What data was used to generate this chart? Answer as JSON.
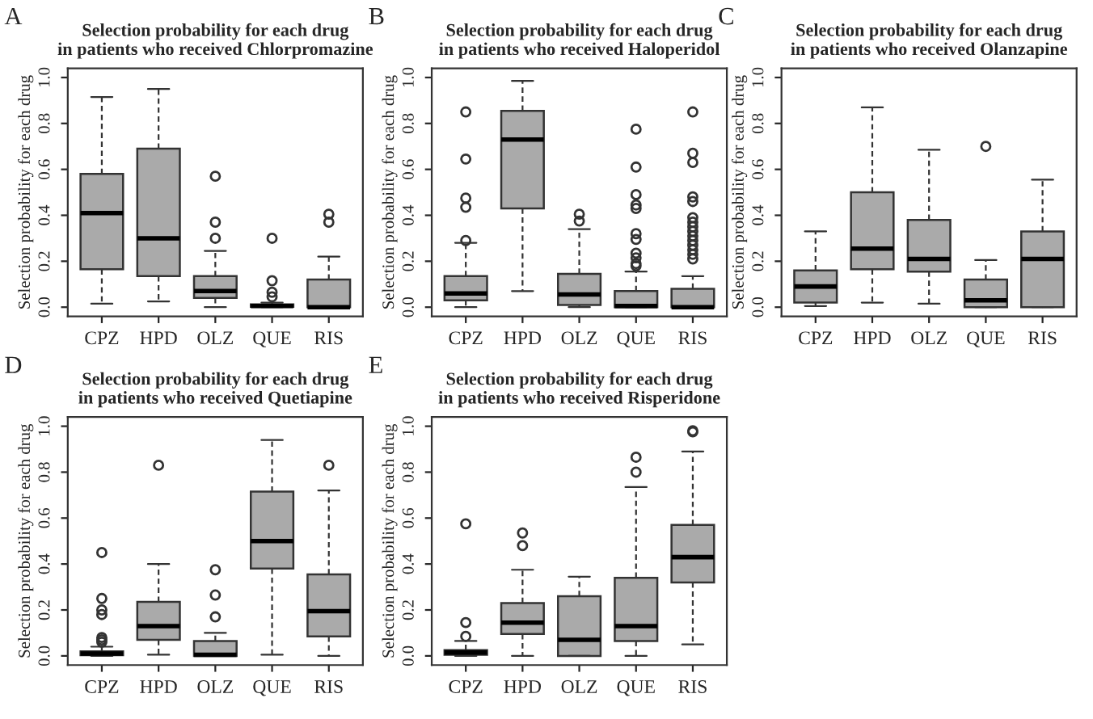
{
  "chart_data": [
    {
      "type": "box",
      "title": "Selection probability for each drug\nin patients who received Chlorpromazine",
      "ylabel": "Selection probability for each drug",
      "annotations": [
        "A"
      ],
      "color": "#aaaaaa",
      "categories": [
        "CPZ",
        "HPD",
        "OLZ",
        "QUE",
        "RIS"
      ],
      "ylim": [
        -0.04,
        1.04
      ],
      "yticks": [
        {
          "value": 0,
          "label": "0.0"
        },
        {
          "value": 0.2,
          "label": "0.2"
        },
        {
          "value": 0.4,
          "label": "0.4"
        },
        {
          "value": 0.6,
          "label": "0.6"
        },
        {
          "value": 0.8,
          "label": "0.8"
        },
        {
          "value": 1,
          "label": "1.0"
        }
      ],
      "boxes": [
        {
          "low": 0.015,
          "q1": 0.165,
          "median": 0.41,
          "q3": 0.58,
          "high": 0.915
        },
        {
          "low": 0.025,
          "q1": 0.135,
          "median": 0.3,
          "q3": 0.69,
          "high": 0.95
        },
        {
          "low": 0,
          "q1": 0.04,
          "median": 0.07,
          "q3": 0.135,
          "high": 0.245,
          "outliers": [
            0.57,
            0.37,
            0.3
          ]
        },
        {
          "low": 0,
          "q1": 0.002,
          "median": 0.005,
          "q3": 0.012,
          "high": 0.02,
          "outliers": [
            0.3,
            0.115,
            0.065,
            0.045
          ]
        },
        {
          "low": 0,
          "q1": 0,
          "median": 0,
          "q3": 0.12,
          "high": 0.22,
          "outliers": [
            0.405,
            0.37
          ]
        }
      ]
    },
    {
      "type": "box",
      "title": "Selection probability for each drug\nin patients who received Haloperidol",
      "ylabel": "Selection probability for each drug",
      "annotations": [
        "B"
      ],
      "color": "#aaaaaa",
      "categories": [
        "CPZ",
        "HPD",
        "OLZ",
        "QUE",
        "RIS"
      ],
      "ylim": [
        -0.04,
        1.04
      ],
      "yticks": [
        {
          "value": 0,
          "label": "0.0"
        },
        {
          "value": 0.2,
          "label": "0.2"
        },
        {
          "value": 0.4,
          "label": "0.4"
        },
        {
          "value": 0.6,
          "label": "0.6"
        },
        {
          "value": 0.8,
          "label": "0.8"
        },
        {
          "value": 1,
          "label": "1.0"
        }
      ],
      "boxes": [
        {
          "low": 0,
          "q1": 0.03,
          "median": 0.06,
          "q3": 0.135,
          "high": 0.28,
          "outliers": [
            0.85,
            0.645,
            0.475,
            0.435,
            0.29
          ]
        },
        {
          "low": 0.07,
          "q1": 0.43,
          "median": 0.73,
          "q3": 0.855,
          "high": 0.985
        },
        {
          "low": 0,
          "q1": 0.01,
          "median": 0.055,
          "q3": 0.145,
          "high": 0.34,
          "outliers": [
            0.405,
            0.375
          ]
        },
        {
          "low": 0,
          "q1": 0,
          "median": 0.005,
          "q3": 0.07,
          "high": 0.155,
          "outliers": [
            0.775,
            0.61,
            0.49,
            0.445,
            0.43,
            0.32,
            0.295,
            0.235,
            0.215,
            0.19,
            0.18
          ]
        },
        {
          "low": 0,
          "q1": 0,
          "median": 0,
          "q3": 0.08,
          "high": 0.135,
          "outliers": [
            0.85,
            0.67,
            0.63,
            0.48,
            0.46,
            0.39,
            0.37,
            0.35,
            0.33,
            0.31,
            0.29,
            0.27,
            0.25,
            0.23,
            0.21
          ]
        }
      ]
    },
    {
      "type": "box",
      "title": "Selection probability for each drug\nin patients who received Olanzapine",
      "ylabel": "Selection probability for each drug",
      "annotations": [
        "C"
      ],
      "color": "#aaaaaa",
      "categories": [
        "CPZ",
        "HPD",
        "OLZ",
        "QUE",
        "RIS"
      ],
      "ylim": [
        -0.04,
        1.04
      ],
      "yticks": [
        {
          "value": 0,
          "label": "0.0"
        },
        {
          "value": 0.2,
          "label": "0.2"
        },
        {
          "value": 0.4,
          "label": "0.4"
        },
        {
          "value": 0.6,
          "label": "0.6"
        },
        {
          "value": 0.8,
          "label": "0.8"
        },
        {
          "value": 1,
          "label": "1.0"
        }
      ],
      "boxes": [
        {
          "low": 0.005,
          "q1": 0.02,
          "median": 0.09,
          "q3": 0.16,
          "high": 0.33
        },
        {
          "low": 0.02,
          "q1": 0.165,
          "median": 0.255,
          "q3": 0.5,
          "high": 0.87
        },
        {
          "low": 0.015,
          "q1": 0.155,
          "median": 0.21,
          "q3": 0.38,
          "high": 0.685
        },
        {
          "low": 0,
          "q1": 0,
          "median": 0.03,
          "q3": 0.12,
          "high": 0.205,
          "outliers": [
            0.7
          ]
        },
        {
          "low": 0,
          "q1": 0,
          "median": 0.21,
          "q3": 0.33,
          "high": 0.555
        }
      ]
    },
    {
      "type": "box",
      "title": "Selection probability for each drug\nin patients who received Quetiapine",
      "ylabel": "Selection probability for each drug",
      "annotations": [
        "D"
      ],
      "color": "#aaaaaa",
      "categories": [
        "CPZ",
        "HPD",
        "OLZ",
        "QUE",
        "RIS"
      ],
      "ylim": [
        -0.04,
        1.04
      ],
      "yticks": [
        {
          "value": 0,
          "label": "0.0"
        },
        {
          "value": 0.2,
          "label": "0.2"
        },
        {
          "value": 0.4,
          "label": "0.4"
        },
        {
          "value": 0.6,
          "label": "0.6"
        },
        {
          "value": 0.8,
          "label": "0.8"
        },
        {
          "value": 1,
          "label": "1.0"
        }
      ],
      "boxes": [
        {
          "low": 0,
          "q1": 0.003,
          "median": 0.01,
          "q3": 0.02,
          "high": 0.04,
          "outliers": [
            0.45,
            0.25,
            0.2,
            0.18,
            0.08,
            0.07,
            0.06
          ]
        },
        {
          "low": 0.005,
          "q1": 0.07,
          "median": 0.13,
          "q3": 0.235,
          "high": 0.4,
          "outliers": [
            0.83
          ]
        },
        {
          "low": 0,
          "q1": 0,
          "median": 0.005,
          "q3": 0.065,
          "high": 0.1,
          "outliers": [
            0.375,
            0.265,
            0.17
          ]
        },
        {
          "low": 0.005,
          "q1": 0.38,
          "median": 0.5,
          "q3": 0.715,
          "high": 0.94
        },
        {
          "low": 0,
          "q1": 0.085,
          "median": 0.195,
          "q3": 0.355,
          "high": 0.72,
          "outliers": [
            0.83
          ]
        }
      ]
    },
    {
      "type": "box",
      "title": "Selection probability for each drug\nin patients who received Risperidone",
      "ylabel": "Selection probability for each drug",
      "annotations": [
        "E"
      ],
      "color": "#aaaaaa",
      "categories": [
        "CPZ",
        "HPD",
        "OLZ",
        "QUE",
        "RIS"
      ],
      "ylim": [
        -0.04,
        1.04
      ],
      "yticks": [
        {
          "value": 0,
          "label": "0.0"
        },
        {
          "value": 0.2,
          "label": "0.2"
        },
        {
          "value": 0.4,
          "label": "0.4"
        },
        {
          "value": 0.6,
          "label": "0.6"
        },
        {
          "value": 0.8,
          "label": "0.8"
        },
        {
          "value": 1,
          "label": "1.0"
        }
      ],
      "boxes": [
        {
          "low": 0,
          "q1": 0.005,
          "median": 0.015,
          "q3": 0.025,
          "high": 0.065,
          "outliers": [
            0.575,
            0.145,
            0.085
          ]
        },
        {
          "low": 0,
          "q1": 0.095,
          "median": 0.145,
          "q3": 0.23,
          "high": 0.375,
          "outliers": [
            0.535,
            0.48
          ]
        },
        {
          "low": 0,
          "q1": 0,
          "median": 0.07,
          "q3": 0.26,
          "high": 0.345
        },
        {
          "low": 0,
          "q1": 0.065,
          "median": 0.13,
          "q3": 0.34,
          "high": 0.735,
          "outliers": [
            0.865,
            0.8
          ]
        },
        {
          "low": 0.05,
          "q1": 0.32,
          "median": 0.43,
          "q3": 0.57,
          "high": 0.89,
          "outliers": [
            0.98,
            0.975
          ]
        }
      ]
    }
  ]
}
